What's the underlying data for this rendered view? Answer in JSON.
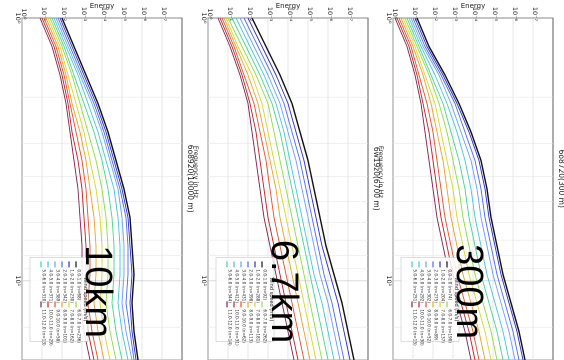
{
  "chart_data": [
    {
      "type": "line",
      "title": "6o8720(300 m)",
      "big_label": "300m",
      "xlabel": "Frequency in Hz",
      "ylabel": "Energy",
      "xscale": "log",
      "yscale": "log",
      "xlim": [
        1,
        20
      ],
      "ylim": [
        1e-08,
        1
      ],
      "x_tick_labels": [
        "10⁰",
        "10¹"
      ],
      "y_tick_labels": [
        "10⁰",
        "10⁻¹",
        "10⁻²",
        "10⁻³",
        "10⁻⁴",
        "10⁻⁵",
        "10⁻⁶",
        "10⁻⁷"
      ],
      "legend_title": "Wind speed (m/s)",
      "grid": true,
      "series": [
        {
          "name": "0.0-1.0 (n=74)",
          "color": "#111111",
          "shape": [
            -1.2,
            -1.8,
            -2.6,
            -3.3,
            -3.9,
            -4.4,
            -4.7,
            -4.9,
            -5.2,
            -5.5,
            -5.9,
            -6.3,
            -6.6
          ]
        },
        {
          "name": "1.0-2.0 (n=204)",
          "color": "#2b2bd0",
          "shape": [
            -1.1,
            -1.7,
            -2.5,
            -3.2,
            -3.8,
            -4.3,
            -4.6,
            -4.8,
            -5.1,
            -5.4,
            -5.8,
            -6.2,
            -6.5
          ]
        },
        {
          "name": "2.0-3.0 (n=275)",
          "color": "#4a6cf0",
          "shape": [
            -1.0,
            -1.6,
            -2.4,
            -3.1,
            -3.6,
            -4.1,
            -4.4,
            -4.6,
            -4.9,
            -5.2,
            -5.6,
            -6.0,
            -6.3
          ]
        },
        {
          "name": "3.0-4.0 (n=302)",
          "color": "#6aa0f8",
          "shape": [
            -0.9,
            -1.5,
            -2.3,
            -2.9,
            -3.4,
            -3.9,
            -4.2,
            -4.4,
            -4.7,
            -5.0,
            -5.4,
            -5.8,
            -6.1
          ]
        },
        {
          "name": "4.0-5.0 (n=292)",
          "color": "#40c8e0",
          "shape": [
            -0.8,
            -1.4,
            -2.1,
            -2.7,
            -3.2,
            -3.6,
            -3.9,
            -4.1,
            -4.4,
            -4.7,
            -5.1,
            -5.5,
            -5.8
          ]
        },
        {
          "name": "5.0-6.0 (n=251)",
          "color": "#40d890",
          "shape": [
            -0.7,
            -1.3,
            -1.9,
            -2.5,
            -2.9,
            -3.3,
            -3.6,
            -3.8,
            -4.1,
            -4.4,
            -4.8,
            -5.2,
            -5.5
          ]
        },
        {
          "name": "6.0-7.0 (n=190)",
          "color": "#88e040",
          "shape": [
            -0.6,
            -1.2,
            -1.8,
            -2.3,
            -2.7,
            -3.0,
            -3.3,
            -3.5,
            -3.8,
            -4.1,
            -4.5,
            -4.9,
            -5.2
          ]
        },
        {
          "name": "7.0-8.0 (n=137)",
          "color": "#d8d820",
          "shape": [
            -0.5,
            -1.1,
            -1.6,
            -2.1,
            -2.4,
            -2.7,
            -3.0,
            -3.2,
            -3.5,
            -3.8,
            -4.2,
            -4.6,
            -4.9
          ]
        },
        {
          "name": "8.0-9.0 (n=89)",
          "color": "#f0a020",
          "shape": [
            -0.4,
            -1.0,
            -1.5,
            -1.9,
            -2.2,
            -2.5,
            -2.7,
            -2.9,
            -3.2,
            -3.5,
            -3.9,
            -4.3,
            -4.6
          ]
        },
        {
          "name": "9.0-10.0 (n=52)",
          "color": "#e85020",
          "shape": [
            -0.3,
            -0.9,
            -1.3,
            -1.7,
            -2.0,
            -2.2,
            -2.4,
            -2.6,
            -2.9,
            -3.2,
            -3.6,
            -4.0,
            -4.3
          ]
        },
        {
          "name": "10.0-11.0 (n=30)",
          "color": "#c02020",
          "shape": [
            -0.2,
            -0.8,
            -1.2,
            -1.5,
            -1.8,
            -2.0,
            -2.2,
            -2.4,
            -2.7,
            -3.0,
            -3.4,
            -3.8,
            -4.1
          ]
        },
        {
          "name": "11.0-12.0 (n=15)",
          "color": "#802050",
          "shape": [
            -0.1,
            -0.7,
            -1.1,
            -1.4,
            -1.6,
            -1.8,
            -2.0,
            -2.2,
            -2.5,
            -2.8,
            -3.2,
            -3.6,
            -3.9
          ]
        }
      ]
    },
    {
      "type": "line",
      "title": "6w19z0(6700 m)",
      "big_label": "6.7km",
      "xlabel": "Frequency in Hz",
      "ylabel": "Energy",
      "xscale": "log",
      "yscale": "log",
      "xlim": [
        1,
        20
      ],
      "ylim": [
        1e-08,
        1
      ],
      "x_tick_labels": [
        "10⁰",
        "10¹"
      ],
      "y_tick_labels": [
        "10⁰",
        "10⁻¹",
        "10⁻²",
        "10⁻³",
        "10⁻⁴",
        "10⁻⁵",
        "10⁻⁶",
        "10⁻⁷"
      ],
      "legend_title": "Wind speed (m/s)",
      "grid": true,
      "series": [
        {
          "name": "0.0-1.0 (n=92)",
          "color": "#111111",
          "shape": [
            -2.2,
            -2.9,
            -3.6,
            -4.2,
            -4.6,
            -5.0,
            -5.3,
            -5.6,
            -5.9,
            -6.3,
            -6.7,
            -7.0,
            -7.3
          ]
        },
        {
          "name": "1.0-2.0 (n=288)",
          "color": "#2b2bd0",
          "shape": [
            -2.0,
            -2.7,
            -3.4,
            -4.0,
            -4.4,
            -4.8,
            -5.1,
            -5.4,
            -5.7,
            -6.1,
            -6.5,
            -6.8,
            -7.1
          ]
        },
        {
          "name": "2.0-3.0 (n=398)",
          "color": "#4a6cf0",
          "shape": [
            -1.8,
            -2.5,
            -3.2,
            -3.8,
            -4.2,
            -4.6,
            -4.9,
            -5.2,
            -5.5,
            -5.8,
            -6.2,
            -6.5,
            -6.8
          ]
        },
        {
          "name": "3.0-4.0 (n=431)",
          "color": "#6aa0f8",
          "shape": [
            -1.6,
            -2.3,
            -3.0,
            -3.6,
            -4.0,
            -4.4,
            -4.7,
            -5.0,
            -5.3,
            -5.6,
            -6.0,
            -6.3,
            -6.6
          ]
        },
        {
          "name": "4.0-5.0 (n=412)",
          "color": "#40c8e0",
          "shape": [
            -1.4,
            -2.1,
            -2.8,
            -3.4,
            -3.8,
            -4.1,
            -4.4,
            -4.7,
            -5.0,
            -5.3,
            -5.7,
            -6.0,
            -6.3
          ]
        },
        {
          "name": "5.0-6.0 (n=344)",
          "color": "#40d890",
          "shape": [
            -1.2,
            -1.9,
            -2.6,
            -3.2,
            -3.6,
            -3.9,
            -4.2,
            -4.5,
            -4.8,
            -5.1,
            -5.4,
            -5.7,
            -6.0
          ]
        },
        {
          "name": "6.0-7.0 (n=262)",
          "color": "#88e040",
          "shape": [
            -1.0,
            -1.7,
            -2.4,
            -3.0,
            -3.3,
            -3.6,
            -3.9,
            -4.2,
            -4.5,
            -4.8,
            -5.1,
            -5.4,
            -5.7
          ]
        },
        {
          "name": "7.0-8.0 (n=181)",
          "color": "#d8d820",
          "shape": [
            -0.9,
            -1.5,
            -2.2,
            -2.7,
            -3.0,
            -3.3,
            -3.6,
            -3.9,
            -4.2,
            -4.5,
            -4.8,
            -5.1,
            -5.4
          ]
        },
        {
          "name": "8.0-9.0 (n=113)",
          "color": "#f0a020",
          "shape": [
            -0.8,
            -1.4,
            -2.0,
            -2.5,
            -2.8,
            -3.1,
            -3.4,
            -3.6,
            -3.9,
            -4.2,
            -4.5,
            -4.8,
            -5.1
          ]
        },
        {
          "name": "9.0-10.0 (n=62)",
          "color": "#e85020",
          "shape": [
            -0.7,
            -1.3,
            -1.8,
            -2.3,
            -2.6,
            -2.9,
            -3.1,
            -3.3,
            -3.6,
            -3.9,
            -4.2,
            -4.5,
            -4.8
          ]
        },
        {
          "name": "10.0-11.0 (n=31)",
          "color": "#c02020",
          "shape": [
            -0.6,
            -1.2,
            -1.7,
            -2.1,
            -2.4,
            -2.6,
            -2.8,
            -3.0,
            -3.3,
            -3.6,
            -3.9,
            -4.2,
            -4.5
          ]
        },
        {
          "name": "11.0-12.0 (n=14)",
          "color": "#802050",
          "shape": [
            -0.5,
            -1.1,
            -1.6,
            -2.0,
            -2.2,
            -2.4,
            -2.6,
            -2.8,
            -3.1,
            -3.4,
            -3.7,
            -4.0,
            -4.3
          ]
        }
      ]
    },
    {
      "type": "line",
      "title": "6o8920(10000 m)",
      "big_label": "10km",
      "xlabel": "",
      "ylabel": "Energy",
      "xscale": "log",
      "yscale": "log",
      "xlim": [
        1,
        20
      ],
      "ylim": [
        1e-08,
        1
      ],
      "x_tick_labels": [
        "10⁰",
        "10¹"
      ],
      "y_tick_labels": [
        "10⁰",
        "10⁻¹",
        "10⁻²",
        "10⁻³",
        "10⁻⁴",
        "10⁻⁵",
        "10⁻⁶",
        "10⁻⁷"
      ],
      "legend_title": "Wind speed (m/s)",
      "grid": true,
      "series": [
        {
          "name": "0.0-1.0 (n=68)",
          "color": "#111111",
          "shape": [
            -2.0,
            -2.6,
            -3.2,
            -3.8,
            -4.3,
            -4.7,
            -5.1,
            -5.4,
            -5.5,
            -5.6,
            -5.5,
            -5.6,
            -5.8
          ]
        },
        {
          "name": "1.0-2.0 (n=230)",
          "color": "#2b2bd0",
          "shape": [
            -1.9,
            -2.5,
            -3.1,
            -3.7,
            -4.2,
            -4.6,
            -5.0,
            -5.3,
            -5.4,
            -5.5,
            -5.4,
            -5.5,
            -5.7
          ]
        },
        {
          "name": "2.0-3.0 (n=342)",
          "color": "#4a6cf0",
          "shape": [
            -1.8,
            -2.4,
            -3.0,
            -3.6,
            -4.1,
            -4.5,
            -4.9,
            -5.2,
            -5.3,
            -5.3,
            -5.2,
            -5.4,
            -5.6
          ]
        },
        {
          "name": "3.0-4.0 (n=389)",
          "color": "#6aa0f8",
          "shape": [
            -1.7,
            -2.3,
            -2.9,
            -3.5,
            -4.0,
            -4.4,
            -4.8,
            -5.0,
            -5.1,
            -5.1,
            -5.0,
            -5.2,
            -5.5
          ]
        },
        {
          "name": "4.0-5.0 (n=371)",
          "color": "#40c8e0",
          "shape": [
            -1.6,
            -2.2,
            -2.8,
            -3.3,
            -3.8,
            -4.2,
            -4.6,
            -4.8,
            -4.9,
            -4.9,
            -4.8,
            -5.0,
            -5.3
          ]
        },
        {
          "name": "5.0-6.0 (n=310)",
          "color": "#40d890",
          "shape": [
            -1.5,
            -2.1,
            -2.6,
            -3.1,
            -3.6,
            -4.0,
            -4.3,
            -4.5,
            -4.6,
            -4.6,
            -4.5,
            -4.7,
            -5.0
          ]
        },
        {
          "name": "6.0-7.0 (n=236)",
          "color": "#88e040",
          "shape": [
            -1.4,
            -2.0,
            -2.5,
            -2.9,
            -3.3,
            -3.7,
            -4.0,
            -4.2,
            -4.3,
            -4.3,
            -4.2,
            -4.4,
            -4.7
          ]
        },
        {
          "name": "7.0-8.0 (n=162)",
          "color": "#d8d820",
          "shape": [
            -1.3,
            -1.9,
            -2.3,
            -2.7,
            -3.1,
            -3.4,
            -3.7,
            -3.9,
            -4.0,
            -4.0,
            -3.9,
            -4.1,
            -4.4
          ]
        },
        {
          "name": "8.0-9.0 (n=101)",
          "color": "#f0a020",
          "shape": [
            -1.2,
            -1.8,
            -2.2,
            -2.5,
            -2.9,
            -3.2,
            -3.4,
            -3.6,
            -3.7,
            -3.7,
            -3.6,
            -3.8,
            -4.1
          ]
        },
        {
          "name": "9.0-10.0 (n=58)",
          "color": "#e85020",
          "shape": [
            -1.1,
            -1.7,
            -2.1,
            -2.4,
            -2.7,
            -3.0,
            -3.2,
            -3.3,
            -3.4,
            -3.4,
            -3.3,
            -3.5,
            -3.8
          ]
        },
        {
          "name": "10.0-11.0 (n=29)",
          "color": "#c02020",
          "shape": [
            -1.0,
            -1.6,
            -2.0,
            -2.3,
            -2.5,
            -2.8,
            -3.0,
            -3.1,
            -3.2,
            -3.2,
            -3.1,
            -3.3,
            -3.6
          ]
        },
        {
          "name": "11.0-12.0 (n=13)",
          "color": "#802050",
          "shape": [
            -0.9,
            -1.5,
            -1.9,
            -2.2,
            -2.4,
            -2.6,
            -2.8,
            -2.9,
            -3.0,
            -3.0,
            -2.9,
            -3.1,
            -3.4
          ]
        }
      ]
    }
  ]
}
